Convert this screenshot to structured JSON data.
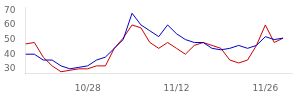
{
  "chart_data": {
    "type": "line",
    "x": [
      0,
      1,
      2,
      3,
      4,
      5,
      6,
      7,
      8,
      9,
      10,
      11,
      12,
      13,
      14,
      15,
      16,
      17,
      18,
      19,
      20,
      21,
      22,
      23,
      24,
      25,
      26,
      27,
      28,
      29
    ],
    "series": [
      {
        "color": "#0000cc",
        "values": [
          40,
          40,
          36,
          36,
          32,
          30,
          31,
          32,
          36,
          38,
          44,
          50,
          68,
          60,
          56,
          52,
          60,
          54,
          50,
          48,
          48,
          44,
          43,
          44,
          46,
          44,
          46,
          52,
          50,
          51
        ]
      },
      {
        "color": "#cc0000",
        "values": [
          47,
          48,
          38,
          32,
          28,
          29,
          30,
          30,
          32,
          32,
          44,
          51,
          60,
          58,
          48,
          44,
          48,
          44,
          40,
          46,
          48,
          46,
          44,
          36,
          34,
          36,
          46,
          60,
          48,
          51
        ]
      }
    ],
    "xlim": [
      0,
      30
    ],
    "ylim": [
      27,
      72
    ],
    "xticks": [
      {
        "value": 7,
        "label": "10/28"
      },
      {
        "value": 17,
        "label": "11/12"
      },
      {
        "value": 27,
        "label": "11/26"
      }
    ],
    "yticks": [
      30,
      40,
      50,
      60,
      70
    ],
    "grid": false
  }
}
